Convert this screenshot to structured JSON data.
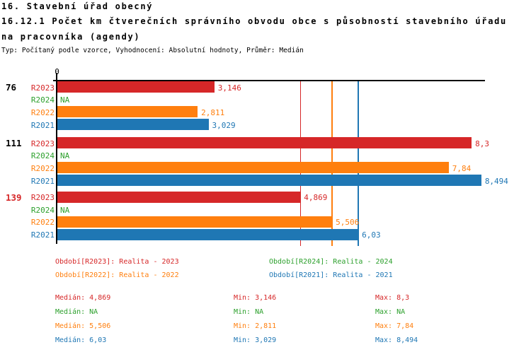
{
  "header": {
    "title": "16. Stavební úřad obecný",
    "subtitle_line1": "16.12.1 Počet km čtverečních správního obvodu obce s působností stavebního úřadu",
    "subtitle_line2": "na pracovníka (agendy)",
    "meta": "Typ: Počítaný podle vzorce, Vyhodnocení: Absolutní hodnoty, Průměr: Medián"
  },
  "chart_data": {
    "type": "bar",
    "orientation": "horizontal",
    "axis": {
      "zero_label": "0",
      "xmin": 0,
      "xmax": 8.57,
      "grid": false
    },
    "series_order": [
      "R2023",
      "R2024",
      "R2022",
      "R2021"
    ],
    "series_colors": {
      "R2023": "#d62728",
      "R2024": "#2ca02c",
      "R2022": "#ff7f0e",
      "R2021": "#1f77b4"
    },
    "groups": [
      {
        "label": "76",
        "label_color": "#000000",
        "bars": [
          {
            "series": "R2023",
            "value": 3.146,
            "display": "3,146"
          },
          {
            "series": "R2024",
            "value": null,
            "display": "NA"
          },
          {
            "series": "R2022",
            "value": 2.811,
            "display": "2,811"
          },
          {
            "series": "R2021",
            "value": 3.029,
            "display": "3,029"
          }
        ]
      },
      {
        "label": "111",
        "label_color": "#000000",
        "bars": [
          {
            "series": "R2023",
            "value": 8.3,
            "display": "8,3"
          },
          {
            "series": "R2024",
            "value": null,
            "display": "NA"
          },
          {
            "series": "R2022",
            "value": 7.84,
            "display": "7,84"
          },
          {
            "series": "R2021",
            "value": 8.494,
            "display": "8,494"
          }
        ]
      },
      {
        "label": "139",
        "label_color": "#d62728",
        "bars": [
          {
            "series": "R2023",
            "value": 4.869,
            "display": "4,869"
          },
          {
            "series": "R2024",
            "value": null,
            "display": "NA"
          },
          {
            "series": "R2022",
            "value": 5.506,
            "display": "5,506"
          },
          {
            "series": "R2021",
            "value": 6.03,
            "display": "6,03"
          }
        ]
      }
    ],
    "reference_lines": [
      {
        "series": "R2023",
        "value": 4.869,
        "color": "#d62728"
      },
      {
        "series": "R2022",
        "value": 5.506,
        "color": "#ff7f0e"
      },
      {
        "series": "R2021",
        "value": 6.03,
        "color": "#1f77b4"
      }
    ]
  },
  "legend": {
    "entries": [
      {
        "text": "Období[R2023]: Realita - 2023",
        "color": "#d62728"
      },
      {
        "text": "Období[R2024]: Realita - 2024",
        "color": "#2ca02c"
      },
      {
        "text": "Období[R2022]: Realita - 2022",
        "color": "#ff7f0e"
      },
      {
        "text": "Období[R2021]: Realita - 2021",
        "color": "#1f77b4"
      }
    ]
  },
  "stats": {
    "median_label": "Medián",
    "min_label": "Min",
    "max_label": "Max",
    "rows": [
      {
        "color": "#d62728",
        "median": "4,869",
        "min": "3,146",
        "max": "8,3"
      },
      {
        "color": "#2ca02c",
        "median": "NA",
        "min": "NA",
        "max": "NA"
      },
      {
        "color": "#ff7f0e",
        "median": "5,506",
        "min": "2,811",
        "max": "7,84"
      },
      {
        "color": "#1f77b4",
        "median": "6,03",
        "min": "3,029",
        "max": "8,494"
      }
    ]
  }
}
